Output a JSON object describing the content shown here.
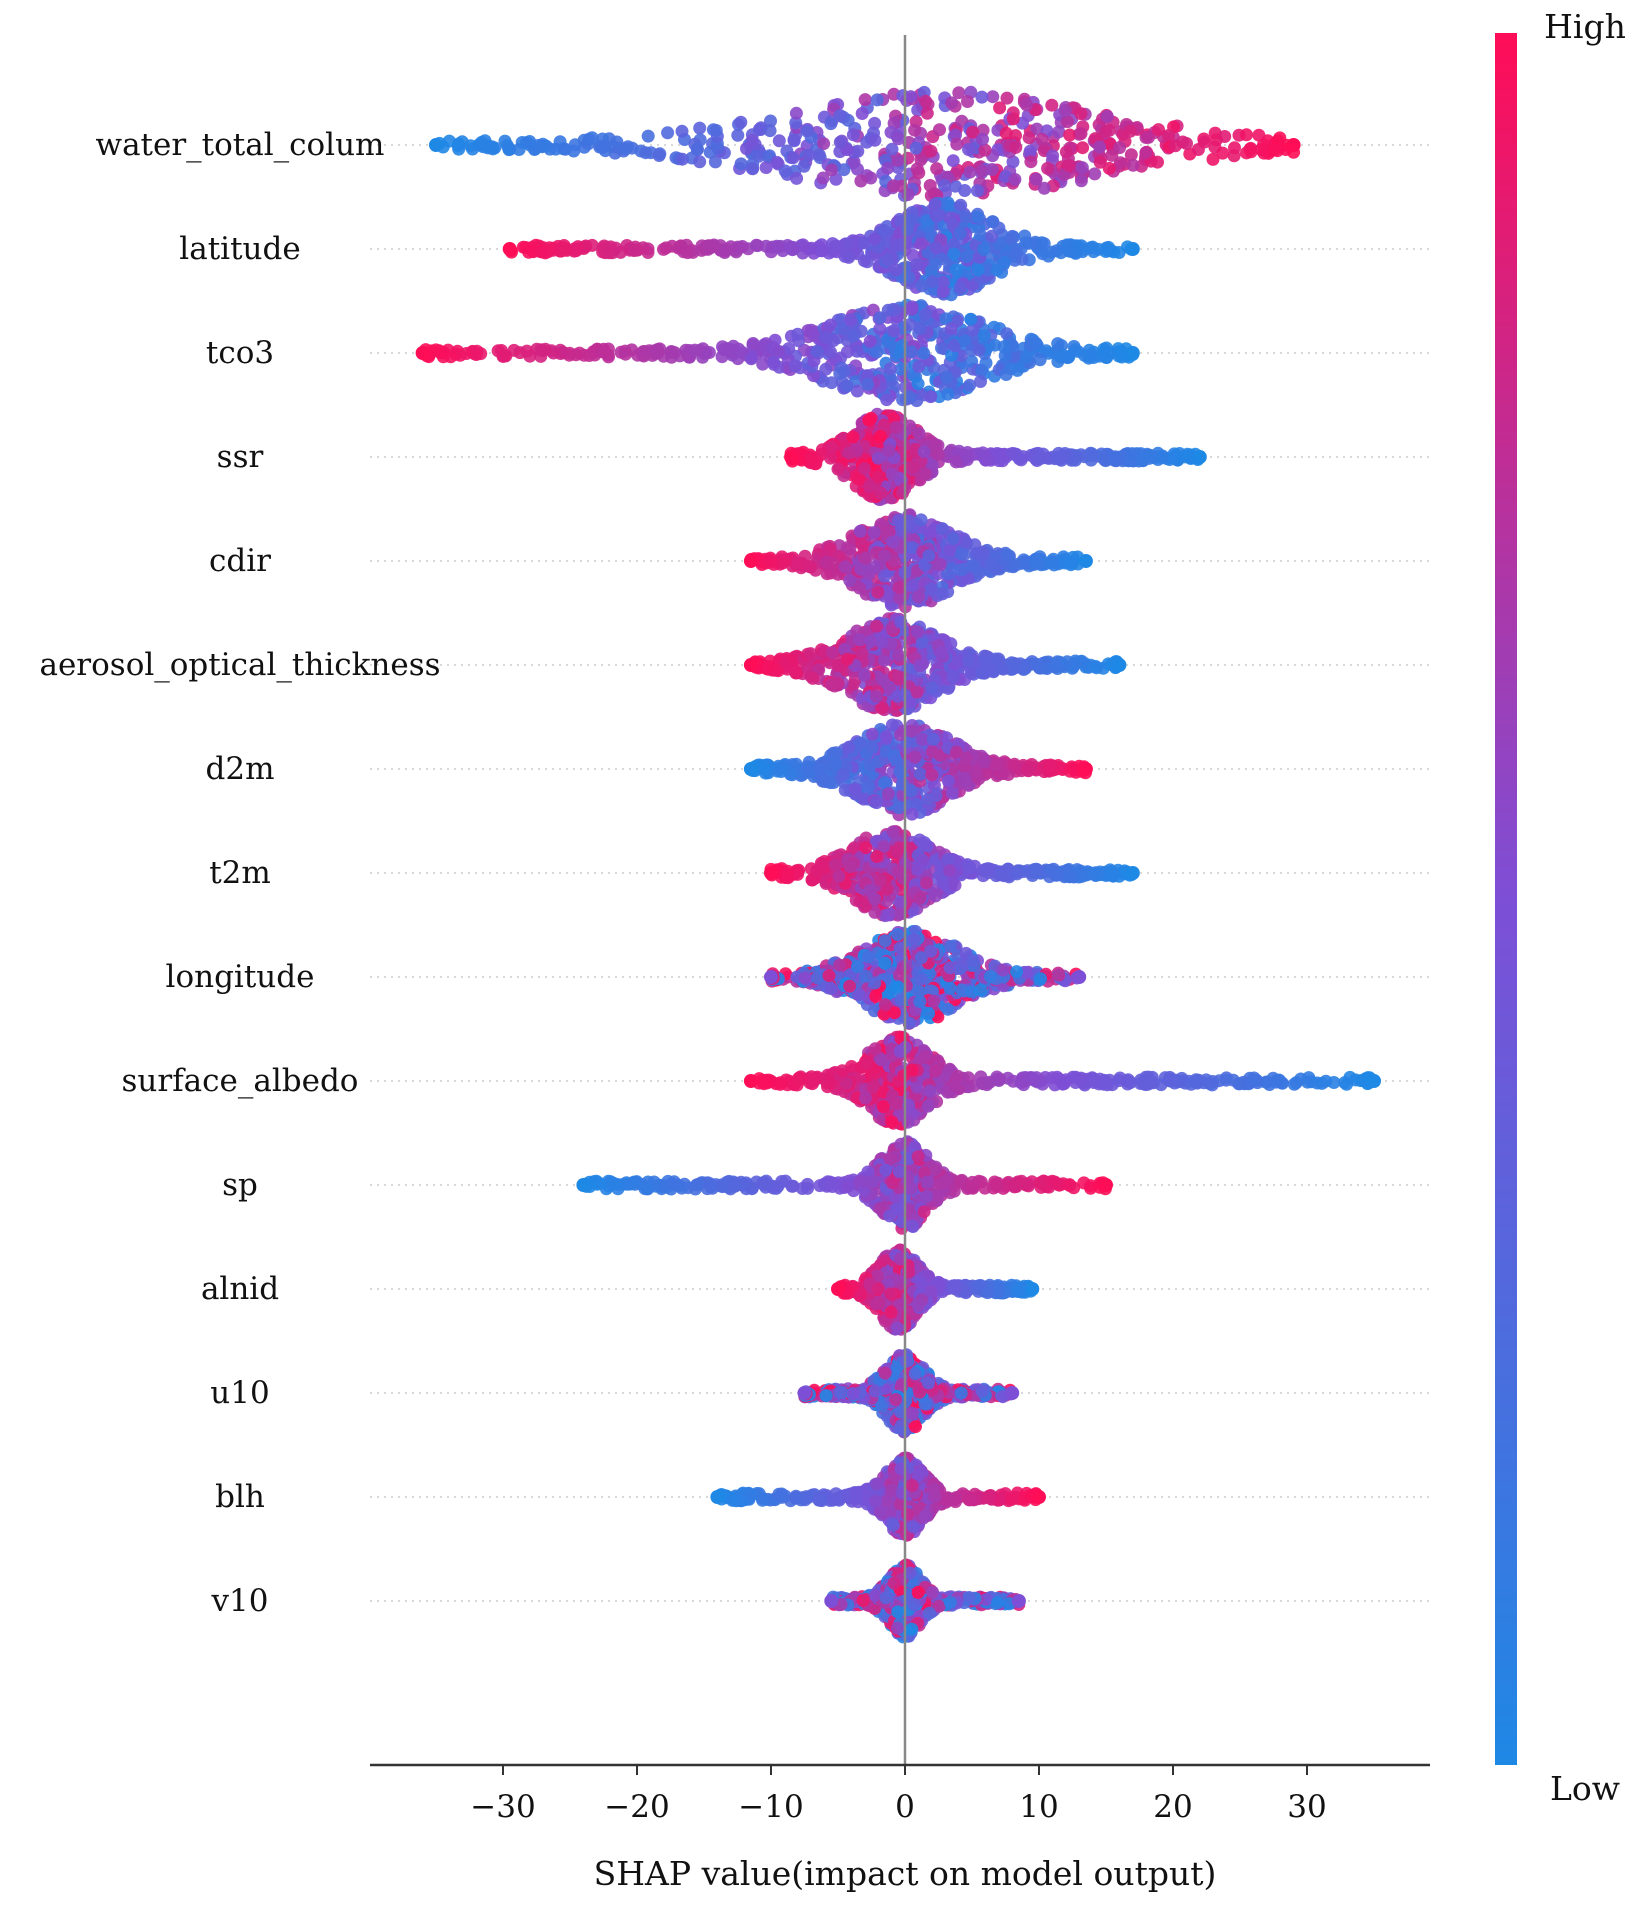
{
  "chart_data": {
    "type": "scatter",
    "subtype": "shap-beeswarm",
    "xlabel": "SHAP value(impact on model output)",
    "xlim": [
      -40,
      39
    ],
    "xticks": [
      -30,
      -20,
      -10,
      0,
      10,
      20,
      30
    ],
    "xtick_labels": [
      "−30",
      "−20",
      "−10",
      "0",
      "10",
      "20",
      "30"
    ],
    "colorbar": {
      "high_label": "High",
      "low_label": "Low",
      "high_color": "#ff0d57",
      "low_color": "#1e88e5"
    },
    "features": [
      {
        "name": "water_total_colum",
        "min": -35,
        "max": 29,
        "low_side": "left",
        "peak": 3,
        "spread": 10,
        "width": 1.0
      },
      {
        "name": "latitude",
        "min": -29.5,
        "max": 17,
        "low_side": "right",
        "peak": 3,
        "spread": 3,
        "width": 0.85
      },
      {
        "name": "tco3",
        "min": -36,
        "max": 17,
        "low_side": "right",
        "peak": 0,
        "spread": 5,
        "width": 0.9
      },
      {
        "name": "ssr",
        "min": -8.5,
        "max": 22,
        "low_side": "right",
        "peak": -1.5,
        "spread": 2,
        "width": 0.8
      },
      {
        "name": "cdir",
        "min": -11.5,
        "max": 13.5,
        "low_side": "right",
        "peak": 0,
        "spread": 3,
        "width": 0.85
      },
      {
        "name": "aerosol_optical_thickness",
        "min": -11.5,
        "max": 16,
        "low_side": "right",
        "peak": -1,
        "spread": 3,
        "width": 0.85
      },
      {
        "name": "d2m",
        "min": -11.5,
        "max": 13.5,
        "low_side": "left",
        "peak": 0,
        "spread": 3,
        "width": 0.85
      },
      {
        "name": "t2m",
        "min": -10,
        "max": 17,
        "low_side": "right",
        "peak": -1,
        "spread": 2.5,
        "width": 0.8
      },
      {
        "name": "longitude",
        "min": -10,
        "max": 13,
        "low_side": "mixed",
        "peak": 0.5,
        "spread": 3,
        "width": 0.85
      },
      {
        "name": "surface_albedo",
        "min": -11.5,
        "max": 35,
        "low_side": "right",
        "peak": -0.5,
        "spread": 2,
        "width": 0.8
      },
      {
        "name": "sp",
        "min": -24,
        "max": 15,
        "low_side": "left",
        "peak": 0,
        "spread": 1.5,
        "width": 0.8
      },
      {
        "name": "alnid",
        "min": -5,
        "max": 9.5,
        "low_side": "right",
        "peak": -0.5,
        "spread": 1.2,
        "width": 0.75
      },
      {
        "name": "u10",
        "min": -7.5,
        "max": 8,
        "low_side": "mixed",
        "peak": 0,
        "spread": 1.2,
        "width": 0.7
      },
      {
        "name": "blh",
        "min": -14,
        "max": 10,
        "low_side": "left",
        "peak": 0,
        "spread": 1.2,
        "width": 0.7
      },
      {
        "name": "v10",
        "min": -5.5,
        "max": 8.5,
        "low_side": "mixed",
        "peak": 0,
        "spread": 1,
        "width": 0.65
      }
    ]
  }
}
